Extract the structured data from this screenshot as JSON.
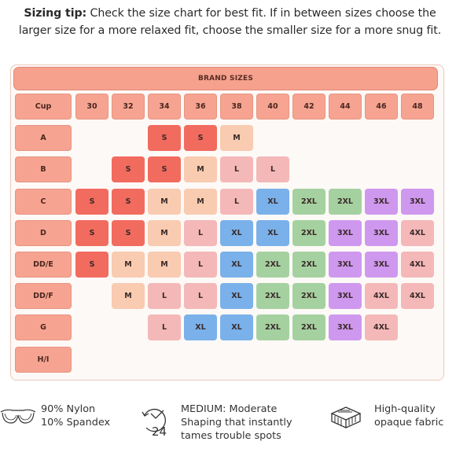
{
  "tip": {
    "label": "Sizing tip:",
    "text": " Check the size chart for best fit. If in between sizes choose the larger size for a more relaxed fit, choose the smaller size for a more snug fit."
  },
  "table": {
    "title": "BRAND SIZES",
    "corner": "Cup",
    "bands": [
      "30",
      "32",
      "34",
      "36",
      "38",
      "40",
      "42",
      "44",
      "46",
      "48"
    ],
    "cups": [
      "A",
      "B",
      "C",
      "D",
      "DD/E",
      "DD/F",
      "G",
      "H/I"
    ],
    "rows": [
      [
        "",
        "",
        "S",
        "S",
        "M",
        "",
        "",
        "",
        "",
        ""
      ],
      [
        "",
        "S",
        "S",
        "M",
        "L",
        "L",
        "",
        "",
        "",
        ""
      ],
      [
        "S",
        "S",
        "M",
        "M",
        "L",
        "XL",
        "2XL",
        "2XL",
        "3XL",
        "3XL"
      ],
      [
        "S",
        "S",
        "M",
        "L",
        "XL",
        "XL",
        "2XL",
        "3XL",
        "3XL",
        "4XL"
      ],
      [
        "S",
        "M",
        "M",
        "L",
        "XL",
        "2XL",
        "2XL",
        "3XL",
        "3XL",
        "4XL"
      ],
      [
        "",
        "M",
        "L",
        "L",
        "XL",
        "2XL",
        "2XL",
        "3XL",
        "4XL",
        "4XL"
      ],
      [
        "",
        "",
        "L",
        "XL",
        "XL",
        "2XL",
        "2XL",
        "3XL",
        "4XL",
        ""
      ],
      [
        "",
        "",
        "",
        "",
        "",
        "",
        "",
        "",
        "",
        ""
      ]
    ],
    "colors": {
      "S": "#f26b5f",
      "M": "#f9cbb0",
      "L": "#f4b8b8",
      "XL": "#7ab1ea",
      "2XL": "#a5d1a1",
      "3XL": "#cf98ef",
      "4XL": "#f4b8b8"
    }
  },
  "features": [
    {
      "icon": "bra-outline-icon",
      "lines": [
        "90% Nylon",
        "10% Spandex"
      ]
    },
    {
      "icon": "24-hour-comfort-icon",
      "lines": [
        "MEDIUM: Moderate",
        "Shaping that instantly",
        "tames trouble spots"
      ]
    },
    {
      "icon": "fabric-layers-icon",
      "lines": [
        "High-quality",
        "opaque fabric"
      ]
    }
  ]
}
